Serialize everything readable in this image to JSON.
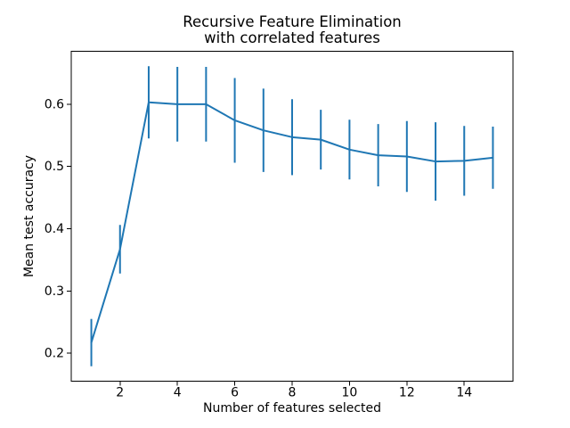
{
  "figure": {
    "background": "#ffffff"
  },
  "chart_data": {
    "type": "line",
    "title": "Recursive Feature Elimination\nwith correlated features",
    "title_lines": [
      "Recursive Feature Elimination",
      "with correlated features"
    ],
    "xlabel": "Number of features selected",
    "ylabel": "Mean test accuracy",
    "x": [
      1,
      2,
      3,
      4,
      5,
      6,
      7,
      8,
      9,
      10,
      11,
      12,
      13,
      14,
      15
    ],
    "series": [
      {
        "name": "mean-test-accuracy",
        "values": [
          0.217,
          0.367,
          0.603,
          0.6,
          0.6,
          0.574,
          0.558,
          0.547,
          0.543,
          0.527,
          0.518,
          0.516,
          0.508,
          0.509,
          0.514
        ],
        "errors": [
          0.038,
          0.039,
          0.058,
          0.06,
          0.06,
          0.068,
          0.067,
          0.061,
          0.048,
          0.048,
          0.05,
          0.057,
          0.063,
          0.056,
          0.05
        ],
        "color": "#1f77b4"
      }
    ],
    "xlim": [
      0.3,
      15.7
    ],
    "ylim": [
      0.155,
      0.685
    ],
    "xticks": [
      2,
      4,
      6,
      8,
      10,
      12,
      14
    ],
    "yticks": [
      0.2,
      0.3,
      0.4,
      0.5,
      0.6
    ],
    "ytick_decimals": 1,
    "grid": false,
    "legend": "none",
    "error_bars": true,
    "spine_color": "#000000"
  }
}
